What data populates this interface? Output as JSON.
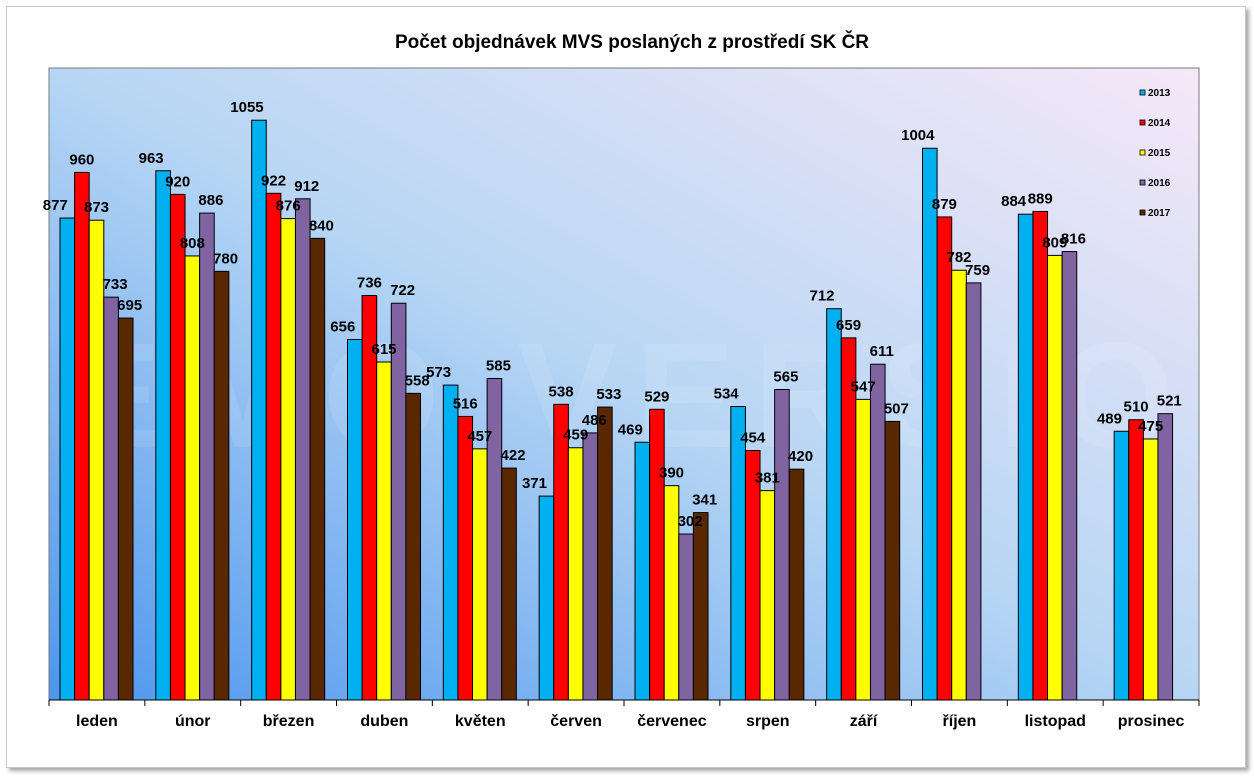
{
  "chart_data": {
    "type": "bar",
    "title": "Počet objednávek MVS poslaných z prostředí SK ČR",
    "xlabel": "",
    "ylabel": "",
    "ylim": [
      0,
      1150
    ],
    "grid": false,
    "legend_position": "top-right",
    "watermark": "DEMO VERSION",
    "categories": [
      "leden",
      "únor",
      "březen",
      "duben",
      "květen",
      "červen",
      "červenec",
      "srpen",
      "září",
      "říjen",
      "listopad",
      "prosinec"
    ],
    "series": [
      {
        "name": "2013",
        "color": "#00B0F0",
        "values": [
          877,
          963,
          1055,
          656,
          573,
          371,
          469,
          534,
          712,
          1004,
          884,
          489
        ]
      },
      {
        "name": "2014",
        "color": "#FF0000",
        "values": [
          960,
          920,
          922,
          736,
          516,
          538,
          529,
          454,
          659,
          879,
          889,
          510
        ]
      },
      {
        "name": "2015",
        "color": "#FFFF00",
        "values": [
          873,
          808,
          876,
          615,
          457,
          459,
          390,
          381,
          547,
          782,
          809,
          475
        ]
      },
      {
        "name": "2016",
        "color": "#8064A2",
        "values": [
          733,
          886,
          912,
          722,
          585,
          486,
          302,
          565,
          611,
          759,
          816,
          521
        ]
      },
      {
        "name": "2017",
        "color": "#5A2800",
        "values": [
          695,
          780,
          840,
          558,
          422,
          533,
          341,
          420,
          507,
          null,
          null,
          null
        ]
      }
    ]
  }
}
